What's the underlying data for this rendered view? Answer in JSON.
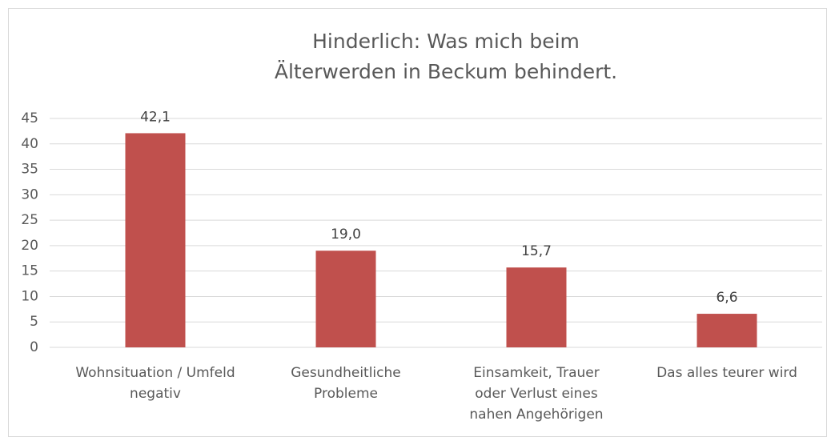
{
  "chart_data": {
    "type": "bar",
    "title": [
      "Hinderlich: Was mich beim",
      "Älterwerden in Beckum behindert."
    ],
    "categories": [
      "Wohnsituation / Umfeld negativ",
      "Gesundheitliche Probleme",
      "Einsamkeit, Trauer oder Verlust eines nahen Angehörigen",
      "Das alles teurer wird"
    ],
    "values": [
      42.1,
      19.0,
      15.7,
      6.6
    ],
    "value_labels": [
      "42,1",
      "19,0",
      "15,7",
      "6,6"
    ],
    "color": "#c0504d",
    "ylim": [
      0,
      45
    ],
    "yticks": [
      0,
      5,
      10,
      15,
      20,
      25,
      30,
      35,
      40,
      45
    ],
    "grid": true
  }
}
